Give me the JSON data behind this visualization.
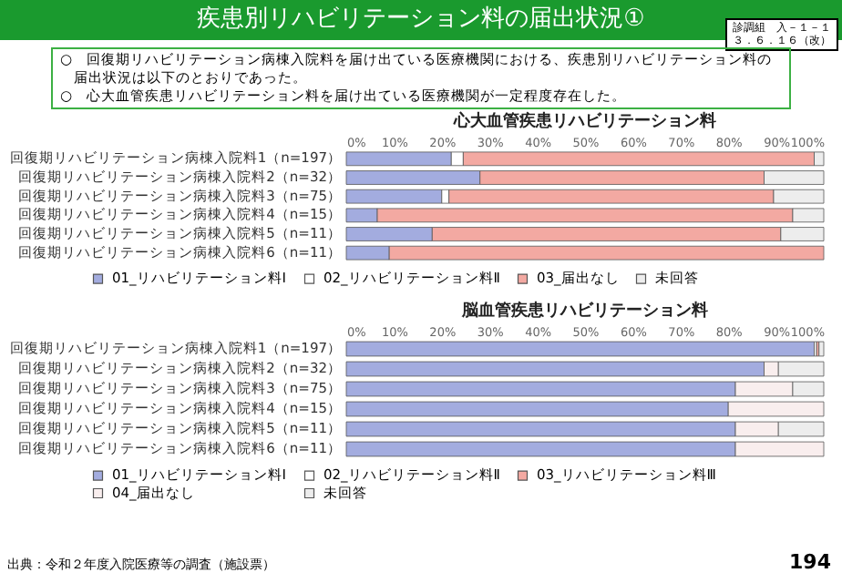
{
  "chart_data": [
    {
      "type": "bar",
      "orientation": "horizontal",
      "stacked": true,
      "title": "心大血管疾患リハビリテーション料",
      "annotations": [
        "疾患別リハビリテーション料の届出状況①",
        "診調組　入－１－１",
        "３．６．１６（改）",
        "○　回復期リハビリテーション病棟入院料を届け出ている医療機関における、疾患別リハビリテーション料の届出状況は以下のとおりであった。",
        "○　心大血管疾患リハビリテーション料を届け出ている医療機関が一定程度存在した。"
      ],
      "categories": [
        "回復期リハビリテーション病棟入院料1（n=197）",
        "回復期リハビリテーション病棟入院料2（n=32）",
        "回復期リハビリテーション病棟入院料3（n=75）",
        "回復期リハビリテーション病棟入院料4（n=15）",
        "回復期リハビリテーション病棟入院料5（n=11）",
        "回復期リハビリテーション病棟入院料6（n=11）"
      ],
      "series": [
        {
          "name": "01_リハビリテーション料Ⅰ",
          "color": "#a3acdf",
          "values": [
            22,
            28,
            20,
            6.5,
            18,
            9
          ]
        },
        {
          "name": "02_リハビリテーション料Ⅱ",
          "color": "#ffffff",
          "values": [
            2.5,
            null,
            1.5,
            null,
            null,
            null
          ]
        },
        {
          "name": "03_届出なし",
          "color": "#f3a9a2",
          "values": [
            73.5,
            59.5,
            68,
            87,
            73,
            91
          ]
        },
        {
          "name": "未回答",
          "color": "#ededed",
          "values": [
            2,
            12.5,
            10.5,
            6.5,
            9,
            null
          ]
        }
      ],
      "xlim": [
        0,
        100
      ],
      "xticks": [
        {
          "value": 0,
          "label": "0%"
        },
        {
          "value": 10,
          "label": "10%"
        },
        {
          "value": 20,
          "label": "20%"
        },
        {
          "value": 30,
          "label": "30%"
        },
        {
          "value": 40,
          "label": "40%"
        },
        {
          "value": 50,
          "label": "50%"
        },
        {
          "value": 60,
          "label": "60%"
        },
        {
          "value": 70,
          "label": "70%"
        },
        {
          "value": 80,
          "label": "80%"
        },
        {
          "value": 90,
          "label": "90%"
        },
        {
          "value": 100,
          "label": "100%"
        }
      ],
      "legend": "bottom"
    },
    {
      "type": "bar",
      "orientation": "horizontal",
      "stacked": true,
      "title": "脳血管疾患リハビリテーション料",
      "annotations": [
        "出典：令和２年度入院医療等の調査（施設票）",
        "194"
      ],
      "categories": [
        "回復期リハビリテーション病棟入院料1（n=197）",
        "回復期リハビリテーション病棟入院料2（n=32）",
        "回復期リハビリテーション病棟入院料3（n=75）",
        "回復期リハビリテーション病棟入院料4（n=15）",
        "回復期リハビリテーション病棟入院料5（n=11）",
        "回復期リハビリテーション病棟入院料6（n=11）"
      ],
      "series": [
        {
          "name": "01_リハビリテーション料Ⅰ",
          "color": "#a3acdf",
          "values": [
            98,
            87.5,
            81.5,
            80,
            81.5,
            81.5
          ]
        },
        {
          "name": "02_リハビリテーション料Ⅱ",
          "color": "#ffffff",
          "values": [
            0.5,
            null,
            null,
            null,
            null,
            null
          ]
        },
        {
          "name": "03_リハビリテーション料Ⅲ",
          "color": "#f3a9a2",
          "values": [
            0.5,
            null,
            null,
            null,
            null,
            null
          ]
        },
        {
          "name": "04_届出なし",
          "color": "#f9eeee",
          "values": [
            null,
            3,
            12,
            20,
            9,
            18.5
          ]
        },
        {
          "name": "未回答",
          "color": "#ededed",
          "values": [
            1,
            9.5,
            6.5,
            null,
            9.5,
            null
          ]
        }
      ],
      "xlim": [
        0,
        100
      ],
      "xticks": [
        {
          "value": 0,
          "label": "0%"
        },
        {
          "value": 10,
          "label": "10%"
        },
        {
          "value": 20,
          "label": "20%"
        },
        {
          "value": 30,
          "label": "30%"
        },
        {
          "value": 40,
          "label": "40%"
        },
        {
          "value": 50,
          "label": "50%"
        },
        {
          "value": 60,
          "label": "60%"
        },
        {
          "value": 70,
          "label": "70%"
        },
        {
          "value": 80,
          "label": "80%"
        },
        {
          "value": 90,
          "label": "90%"
        },
        {
          "value": 100,
          "label": "100%"
        }
      ],
      "legend": "bottom"
    }
  ]
}
